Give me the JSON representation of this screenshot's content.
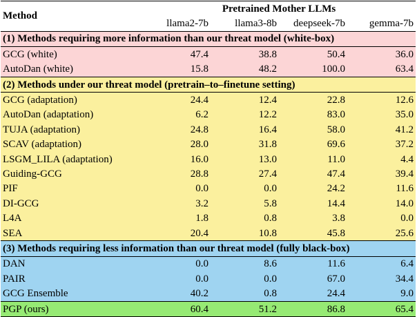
{
  "header": {
    "method_label": "Method",
    "group_label": "Pretrained Mother LLMs",
    "models": [
      "llama2-7b",
      "llama3-8b",
      "deepseek-7b",
      "gemma-7b"
    ]
  },
  "sections": [
    {
      "title": "(1) Methods requiring more information than our threat model (white-box)",
      "rows": [
        {
          "method": "GCG (white)",
          "values": [
            "47.4",
            "38.8",
            "50.4",
            "36.0"
          ]
        },
        {
          "method": "AutoDan (white)",
          "values": [
            "15.8",
            "48.2",
            "100.0",
            "63.4"
          ]
        }
      ]
    },
    {
      "title": "(2) Methods under our threat model (pretrain–to–finetune setting)",
      "rows": [
        {
          "method": "GCG (adaptation)",
          "values": [
            "24.4",
            "12.4",
            "22.8",
            "12.6"
          ]
        },
        {
          "method": "AutoDan (adaptation)",
          "values": [
            "6.2",
            "12.2",
            "83.0",
            "35.0"
          ]
        },
        {
          "method": "TUJA (adaptation)",
          "values": [
            "24.8",
            "16.4",
            "58.0",
            "41.2"
          ]
        },
        {
          "method": "SCAV (adaptation)",
          "values": [
            "28.0",
            "31.8",
            "69.6",
            "37.2"
          ]
        },
        {
          "method": "LSGM_LILA (adaptation)",
          "values": [
            "16.0",
            "13.0",
            "11.0",
            "4.4"
          ]
        },
        {
          "method": "Guiding-GCG",
          "values": [
            "28.8",
            "27.4",
            "47.4",
            "39.4"
          ]
        },
        {
          "method": "PIF",
          "values": [
            "0.0",
            "0.0",
            "24.2",
            "11.6"
          ]
        },
        {
          "method": "DI-GCG",
          "values": [
            "3.2",
            "5.8",
            "14.4",
            "14.0"
          ]
        },
        {
          "method": "L4A",
          "values": [
            "1.8",
            "0.8",
            "3.8",
            "0.0"
          ]
        },
        {
          "method": "SEA",
          "values": [
            "20.4",
            "10.8",
            "45.8",
            "25.6"
          ]
        }
      ]
    },
    {
      "title": "(3) Methods requiring less information than our threat model (fully black-box)",
      "rows": [
        {
          "method": "DAN",
          "values": [
            "0.0",
            "8.6",
            "11.6",
            "6.4"
          ]
        },
        {
          "method": "PAIR",
          "values": [
            "0.0",
            "0.0",
            "67.0",
            "34.4"
          ]
        },
        {
          "method": "GCG Ensemble",
          "values": [
            "40.2",
            "0.8",
            "24.4",
            "9.0"
          ]
        }
      ]
    }
  ],
  "ours": {
    "method": "PGP (ours)",
    "values": [
      "60.4",
      "51.2",
      "86.8",
      "65.4"
    ]
  },
  "colors": {
    "section1_bg": "#fcd5d6",
    "section2_bg": "#fbf09e",
    "section3_bg": "#9fd4f1",
    "ours_bg": "#96ea74"
  }
}
